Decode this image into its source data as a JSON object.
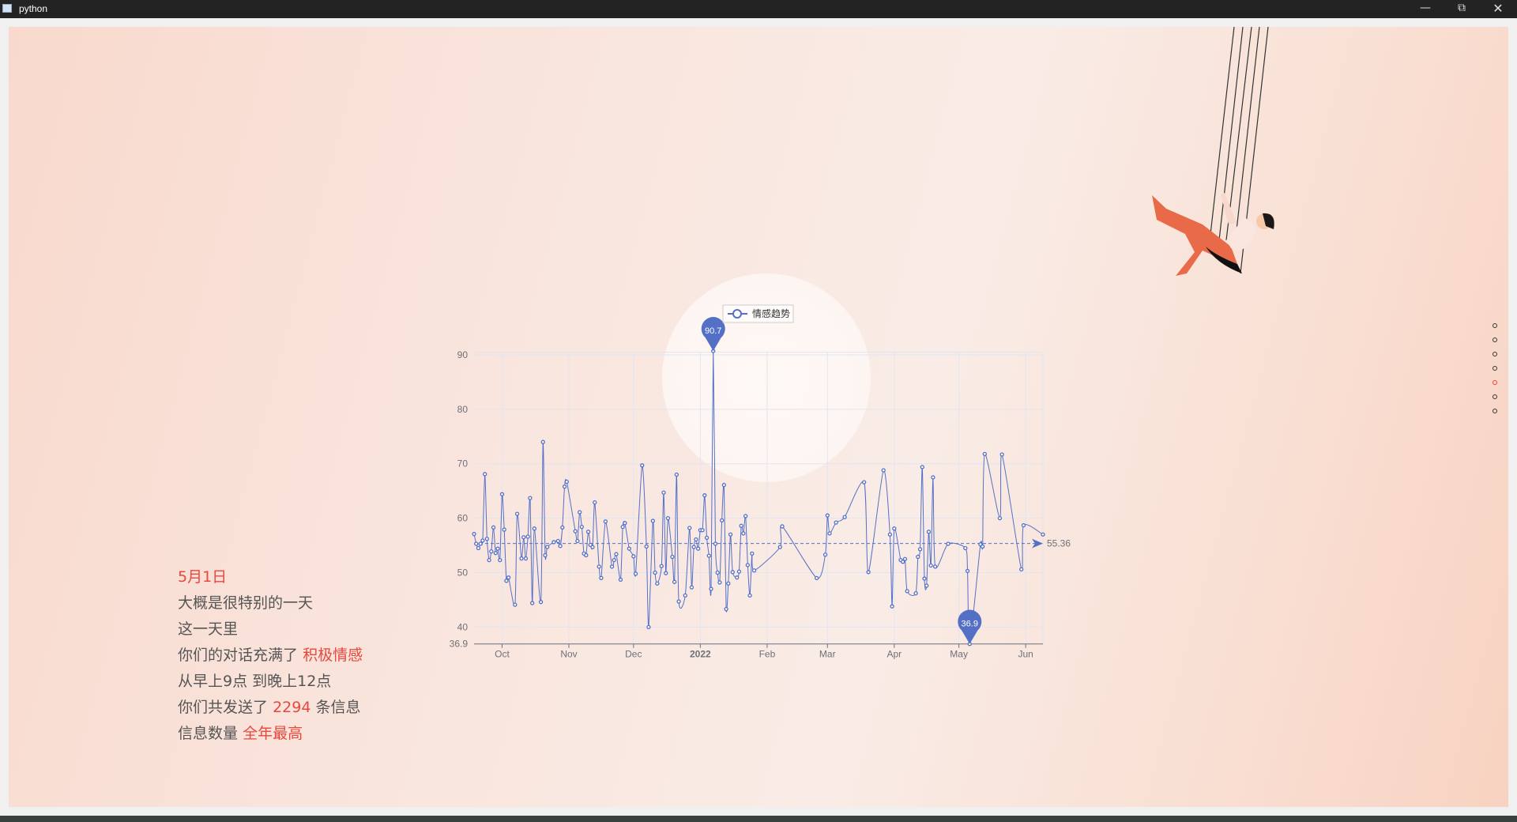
{
  "window": {
    "title": "python",
    "minimize_icon": "minimize-icon",
    "restore_icon": "restore-icon",
    "close_icon": "close-icon"
  },
  "story": {
    "date": "5月1日",
    "line1": "大概是很特别的一天",
    "line2": "这一天里",
    "line3_prefix": "你们的对话充满了",
    "line3_highlight": "积极情感",
    "line4": "从早上9点 到晚上12点",
    "line5_prefix": "你们共发送了",
    "line5_highlight": "2294",
    "line5_suffix": "条信息",
    "line6_prefix": "信息数量",
    "line6_highlight": "全年最高",
    "highlight_color": "#e8473c"
  },
  "nav_dots": {
    "count": 7,
    "active_index": 4,
    "active_color": "#ff3b3b"
  },
  "illustration": "person-on-swing",
  "chart_data": {
    "type": "line",
    "legend": [
      "情感趋势"
    ],
    "legend_placement": "top-center",
    "color": "#5470c6",
    "grid": true,
    "xlim": [
      "2021-09-18",
      "2022-06-09"
    ],
    "ylim": [
      36.9,
      90.5
    ],
    "y_ticks": [
      40,
      50,
      60,
      70,
      80,
      90
    ],
    "y_min_label": "36.9",
    "x_ticks": [
      {
        "date": "2021-10-01",
        "label": "Oct"
      },
      {
        "date": "2021-11-01",
        "label": "Nov"
      },
      {
        "date": "2021-12-01",
        "label": "Dec"
      },
      {
        "date": "2022-01-01",
        "label": "2022",
        "bold": true
      },
      {
        "date": "2022-02-01",
        "label": "Feb"
      },
      {
        "date": "2022-03-01",
        "label": "Mar"
      },
      {
        "date": "2022-04-01",
        "label": "Apr"
      },
      {
        "date": "2022-05-01",
        "label": "May"
      },
      {
        "date": "2022-06-01",
        "label": "Jun"
      }
    ],
    "mark_points": [
      {
        "type": "max",
        "label": "90.7"
      },
      {
        "type": "min",
        "label": "36.9"
      }
    ],
    "mark_line": {
      "type": "average",
      "value": 55.36,
      "label": "55.36"
    },
    "series": [
      {
        "name": "情感趋势",
        "points": [
          [
            "2021-09-18",
            57.1
          ],
          [
            "2021-09-19",
            55.3
          ],
          [
            "2021-09-20",
            54.5
          ],
          [
            "2021-09-21",
            55.3
          ],
          [
            "2021-09-22",
            55.9
          ],
          [
            "2021-09-23",
            68.1
          ],
          [
            "2021-09-24",
            56.2
          ],
          [
            "2021-09-25",
            52.3
          ],
          [
            "2021-09-26",
            53.9
          ],
          [
            "2021-09-27",
            58.3
          ],
          [
            "2021-09-28",
            53.6
          ],
          [
            "2021-09-29",
            54.4
          ],
          [
            "2021-09-30",
            52.3
          ],
          [
            "2021-10-01",
            64.4
          ],
          [
            "2021-10-02",
            57.9
          ],
          [
            "2021-10-03",
            48.5
          ],
          [
            "2021-10-04",
            49.1
          ],
          [
            "2021-10-07",
            44.1
          ],
          [
            "2021-10-08",
            60.8
          ],
          [
            "2021-10-10",
            52.6
          ],
          [
            "2021-10-11",
            56.5
          ],
          [
            "2021-10-12",
            52.6
          ],
          [
            "2021-10-13",
            56.6
          ],
          [
            "2021-10-14",
            63.7
          ],
          [
            "2021-10-15",
            44.4
          ],
          [
            "2021-10-16",
            58.1
          ],
          [
            "2021-10-19",
            44.6
          ],
          [
            "2021-10-20",
            74.0
          ],
          [
            "2021-10-21",
            53.2
          ],
          [
            "2021-10-22",
            54.7
          ],
          [
            "2021-10-25",
            55.6
          ],
          [
            "2021-10-27",
            55.8
          ],
          [
            "2021-10-28",
            54.9
          ],
          [
            "2021-10-29",
            58.3
          ],
          [
            "2021-10-30",
            65.8
          ],
          [
            "2021-10-31",
            66.7
          ],
          [
            "2021-11-04",
            57.6
          ],
          [
            "2021-11-05",
            55.8
          ],
          [
            "2021-11-06",
            61.1
          ],
          [
            "2021-11-07",
            58.4
          ],
          [
            "2021-11-08",
            53.5
          ],
          [
            "2021-11-09",
            53.2
          ],
          [
            "2021-11-10",
            57.5
          ],
          [
            "2021-11-11",
            55.1
          ],
          [
            "2021-11-12",
            54.7
          ],
          [
            "2021-11-13",
            62.9
          ],
          [
            "2021-11-15",
            51.1
          ],
          [
            "2021-11-16",
            49.0
          ],
          [
            "2021-11-18",
            59.4
          ],
          [
            "2021-11-21",
            51.1
          ],
          [
            "2021-11-22",
            52.3
          ],
          [
            "2021-11-23",
            53.4
          ],
          [
            "2021-11-25",
            48.7
          ],
          [
            "2021-11-26",
            58.4
          ],
          [
            "2021-11-27",
            59.1
          ],
          [
            "2021-11-29",
            54.4
          ],
          [
            "2021-12-01",
            53.0
          ],
          [
            "2021-12-02",
            49.8
          ],
          [
            "2021-12-05",
            69.7
          ],
          [
            "2021-12-07",
            54.8
          ],
          [
            "2021-12-08",
            40.0
          ],
          [
            "2021-12-10",
            59.5
          ],
          [
            "2021-12-11",
            50.0
          ],
          [
            "2021-12-12",
            48.0
          ],
          [
            "2021-12-14",
            51.2
          ],
          [
            "2021-12-15",
            64.7
          ],
          [
            "2021-12-16",
            49.9
          ],
          [
            "2021-12-17",
            60.0
          ],
          [
            "2021-12-19",
            52.9
          ],
          [
            "2021-12-20",
            48.3
          ],
          [
            "2021-12-21",
            68.0
          ],
          [
            "2021-12-22",
            44.7
          ],
          [
            "2021-12-25",
            45.8
          ],
          [
            "2021-12-27",
            58.2
          ],
          [
            "2021-12-28",
            47.3
          ],
          [
            "2021-12-29",
            54.7
          ],
          [
            "2021-12-30",
            56.1
          ],
          [
            "2021-12-31",
            54.4
          ],
          [
            "2022-01-01",
            57.8
          ],
          [
            "2022-01-02",
            57.8
          ],
          [
            "2022-01-03",
            64.2
          ],
          [
            "2022-01-04",
            56.4
          ],
          [
            "2022-01-05",
            53.1
          ],
          [
            "2022-01-06",
            47.0
          ],
          [
            "2022-01-07",
            90.7
          ],
          [
            "2022-01-08",
            55.3
          ],
          [
            "2022-01-09",
            50.0
          ],
          [
            "2022-01-10",
            48.2
          ],
          [
            "2022-01-11",
            59.6
          ],
          [
            "2022-01-12",
            66.1
          ],
          [
            "2022-01-13",
            43.3
          ],
          [
            "2022-01-14",
            48.0
          ],
          [
            "2022-01-15",
            57.0
          ],
          [
            "2022-01-16",
            50.1
          ],
          [
            "2022-01-18",
            49.1
          ],
          [
            "2022-01-19",
            50.2
          ],
          [
            "2022-01-20",
            58.6
          ],
          [
            "2022-01-21",
            57.2
          ],
          [
            "2022-01-22",
            60.4
          ],
          [
            "2022-01-23",
            51.4
          ],
          [
            "2022-01-24",
            45.8
          ],
          [
            "2022-01-25",
            53.5
          ],
          [
            "2022-01-26",
            50.4
          ],
          [
            "2022-02-07",
            54.7
          ],
          [
            "2022-02-08",
            58.5
          ],
          [
            "2022-02-24",
            49.0
          ],
          [
            "2022-02-28",
            53.3
          ],
          [
            "2022-03-01",
            60.5
          ],
          [
            "2022-03-02",
            57.2
          ],
          [
            "2022-03-05",
            59.2
          ],
          [
            "2022-03-09",
            60.2
          ],
          [
            "2022-03-18",
            66.6
          ],
          [
            "2022-03-20",
            50.1
          ],
          [
            "2022-03-27",
            68.8
          ],
          [
            "2022-03-30",
            57.0
          ],
          [
            "2022-03-31",
            43.8
          ],
          [
            "2022-04-01",
            58.1
          ],
          [
            "2022-04-04",
            52.3
          ],
          [
            "2022-04-05",
            52.0
          ],
          [
            "2022-04-06",
            52.5
          ],
          [
            "2022-04-07",
            46.6
          ],
          [
            "2022-04-11",
            46.2
          ],
          [
            "2022-04-12",
            52.9
          ],
          [
            "2022-04-13",
            54.3
          ],
          [
            "2022-04-14",
            69.4
          ],
          [
            "2022-04-15",
            48.9
          ],
          [
            "2022-04-16",
            47.6
          ],
          [
            "2022-04-17",
            57.5
          ],
          [
            "2022-04-18",
            51.3
          ],
          [
            "2022-04-19",
            67.5
          ],
          [
            "2022-04-20",
            51.1
          ],
          [
            "2022-04-26",
            55.3
          ],
          [
            "2022-05-04",
            54.5
          ],
          [
            "2022-05-05",
            50.3
          ],
          [
            "2022-05-06",
            36.9
          ],
          [
            "2022-05-11",
            55.2
          ],
          [
            "2022-05-12",
            54.8
          ],
          [
            "2022-05-13",
            71.8
          ],
          [
            "2022-05-20",
            60.0
          ],
          [
            "2022-05-21",
            71.7
          ],
          [
            "2022-05-30",
            50.6
          ],
          [
            "2022-05-31",
            58.7
          ],
          [
            "2022-06-09",
            57.0
          ]
        ]
      }
    ]
  }
}
